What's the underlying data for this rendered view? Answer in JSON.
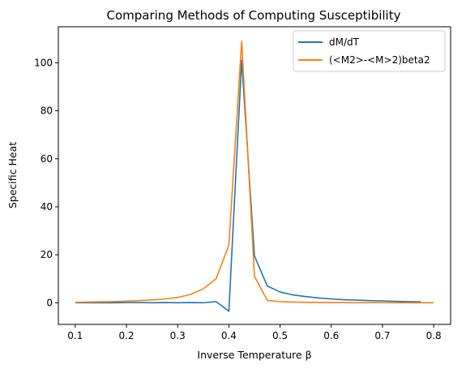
{
  "chart_data": {
    "type": "line",
    "title": "Comparing Methods of Computing Susceptibility",
    "xlabel": "Inverse Temperature β",
    "ylabel": "Specific Heat",
    "xlim": [
      0.067,
      0.833
    ],
    "ylim": [
      -9,
      115
    ],
    "xticks": [
      0.1,
      0.2,
      0.3,
      0.4,
      0.5,
      0.6,
      0.7,
      0.8
    ],
    "xtick_labels": [
      "0.1",
      "0.2",
      "0.3",
      "0.4",
      "0.5",
      "0.6",
      "0.7",
      "0.8"
    ],
    "yticks": [
      0,
      20,
      40,
      60,
      80,
      100
    ],
    "ytick_labels": [
      "0",
      "20",
      "40",
      "60",
      "80",
      "100"
    ],
    "grid": false,
    "legend_position": "top-right",
    "series": [
      {
        "name": "dM/dT",
        "color": "#1f77b4",
        "x": [
          0.1,
          0.125,
          0.15,
          0.175,
          0.2,
          0.225,
          0.25,
          0.275,
          0.3,
          0.325,
          0.35,
          0.375,
          0.4,
          0.425,
          0.45,
          0.475,
          0.5,
          0.525,
          0.55,
          0.575,
          0.6,
          0.625,
          0.65,
          0.675,
          0.7,
          0.725,
          0.75,
          0.775
        ],
        "values": [
          0.0,
          0.0,
          0.0,
          0.0,
          0.1,
          0.1,
          0.0,
          0.1,
          0.0,
          0.1,
          0.0,
          0.5,
          -3.5,
          101.0,
          19.5,
          7.0,
          4.5,
          3.3,
          2.6,
          2.0,
          1.6,
          1.3,
          1.1,
          0.9,
          0.8,
          0.6,
          0.5,
          0.4
        ]
      },
      {
        "name": "(<M2>-<M>2)beta2",
        "color": "#ff7f0e",
        "x": [
          0.1,
          0.125,
          0.15,
          0.175,
          0.2,
          0.225,
          0.25,
          0.275,
          0.3,
          0.325,
          0.35,
          0.375,
          0.4,
          0.425,
          0.45,
          0.475,
          0.5,
          0.525,
          0.55,
          0.575,
          0.6,
          0.625,
          0.65,
          0.675,
          0.7,
          0.725,
          0.75,
          0.775,
          0.8
        ],
        "values": [
          0.2,
          0.3,
          0.4,
          0.5,
          0.7,
          0.9,
          1.2,
          1.6,
          2.2,
          3.5,
          5.8,
          10.0,
          24.0,
          109.0,
          11.0,
          1.0,
          0.5,
          0.3,
          0.2,
          0.15,
          0.1,
          0.1,
          0.05,
          0.05,
          0.05,
          0.0,
          0.0,
          0.0,
          0.0
        ]
      }
    ]
  }
}
